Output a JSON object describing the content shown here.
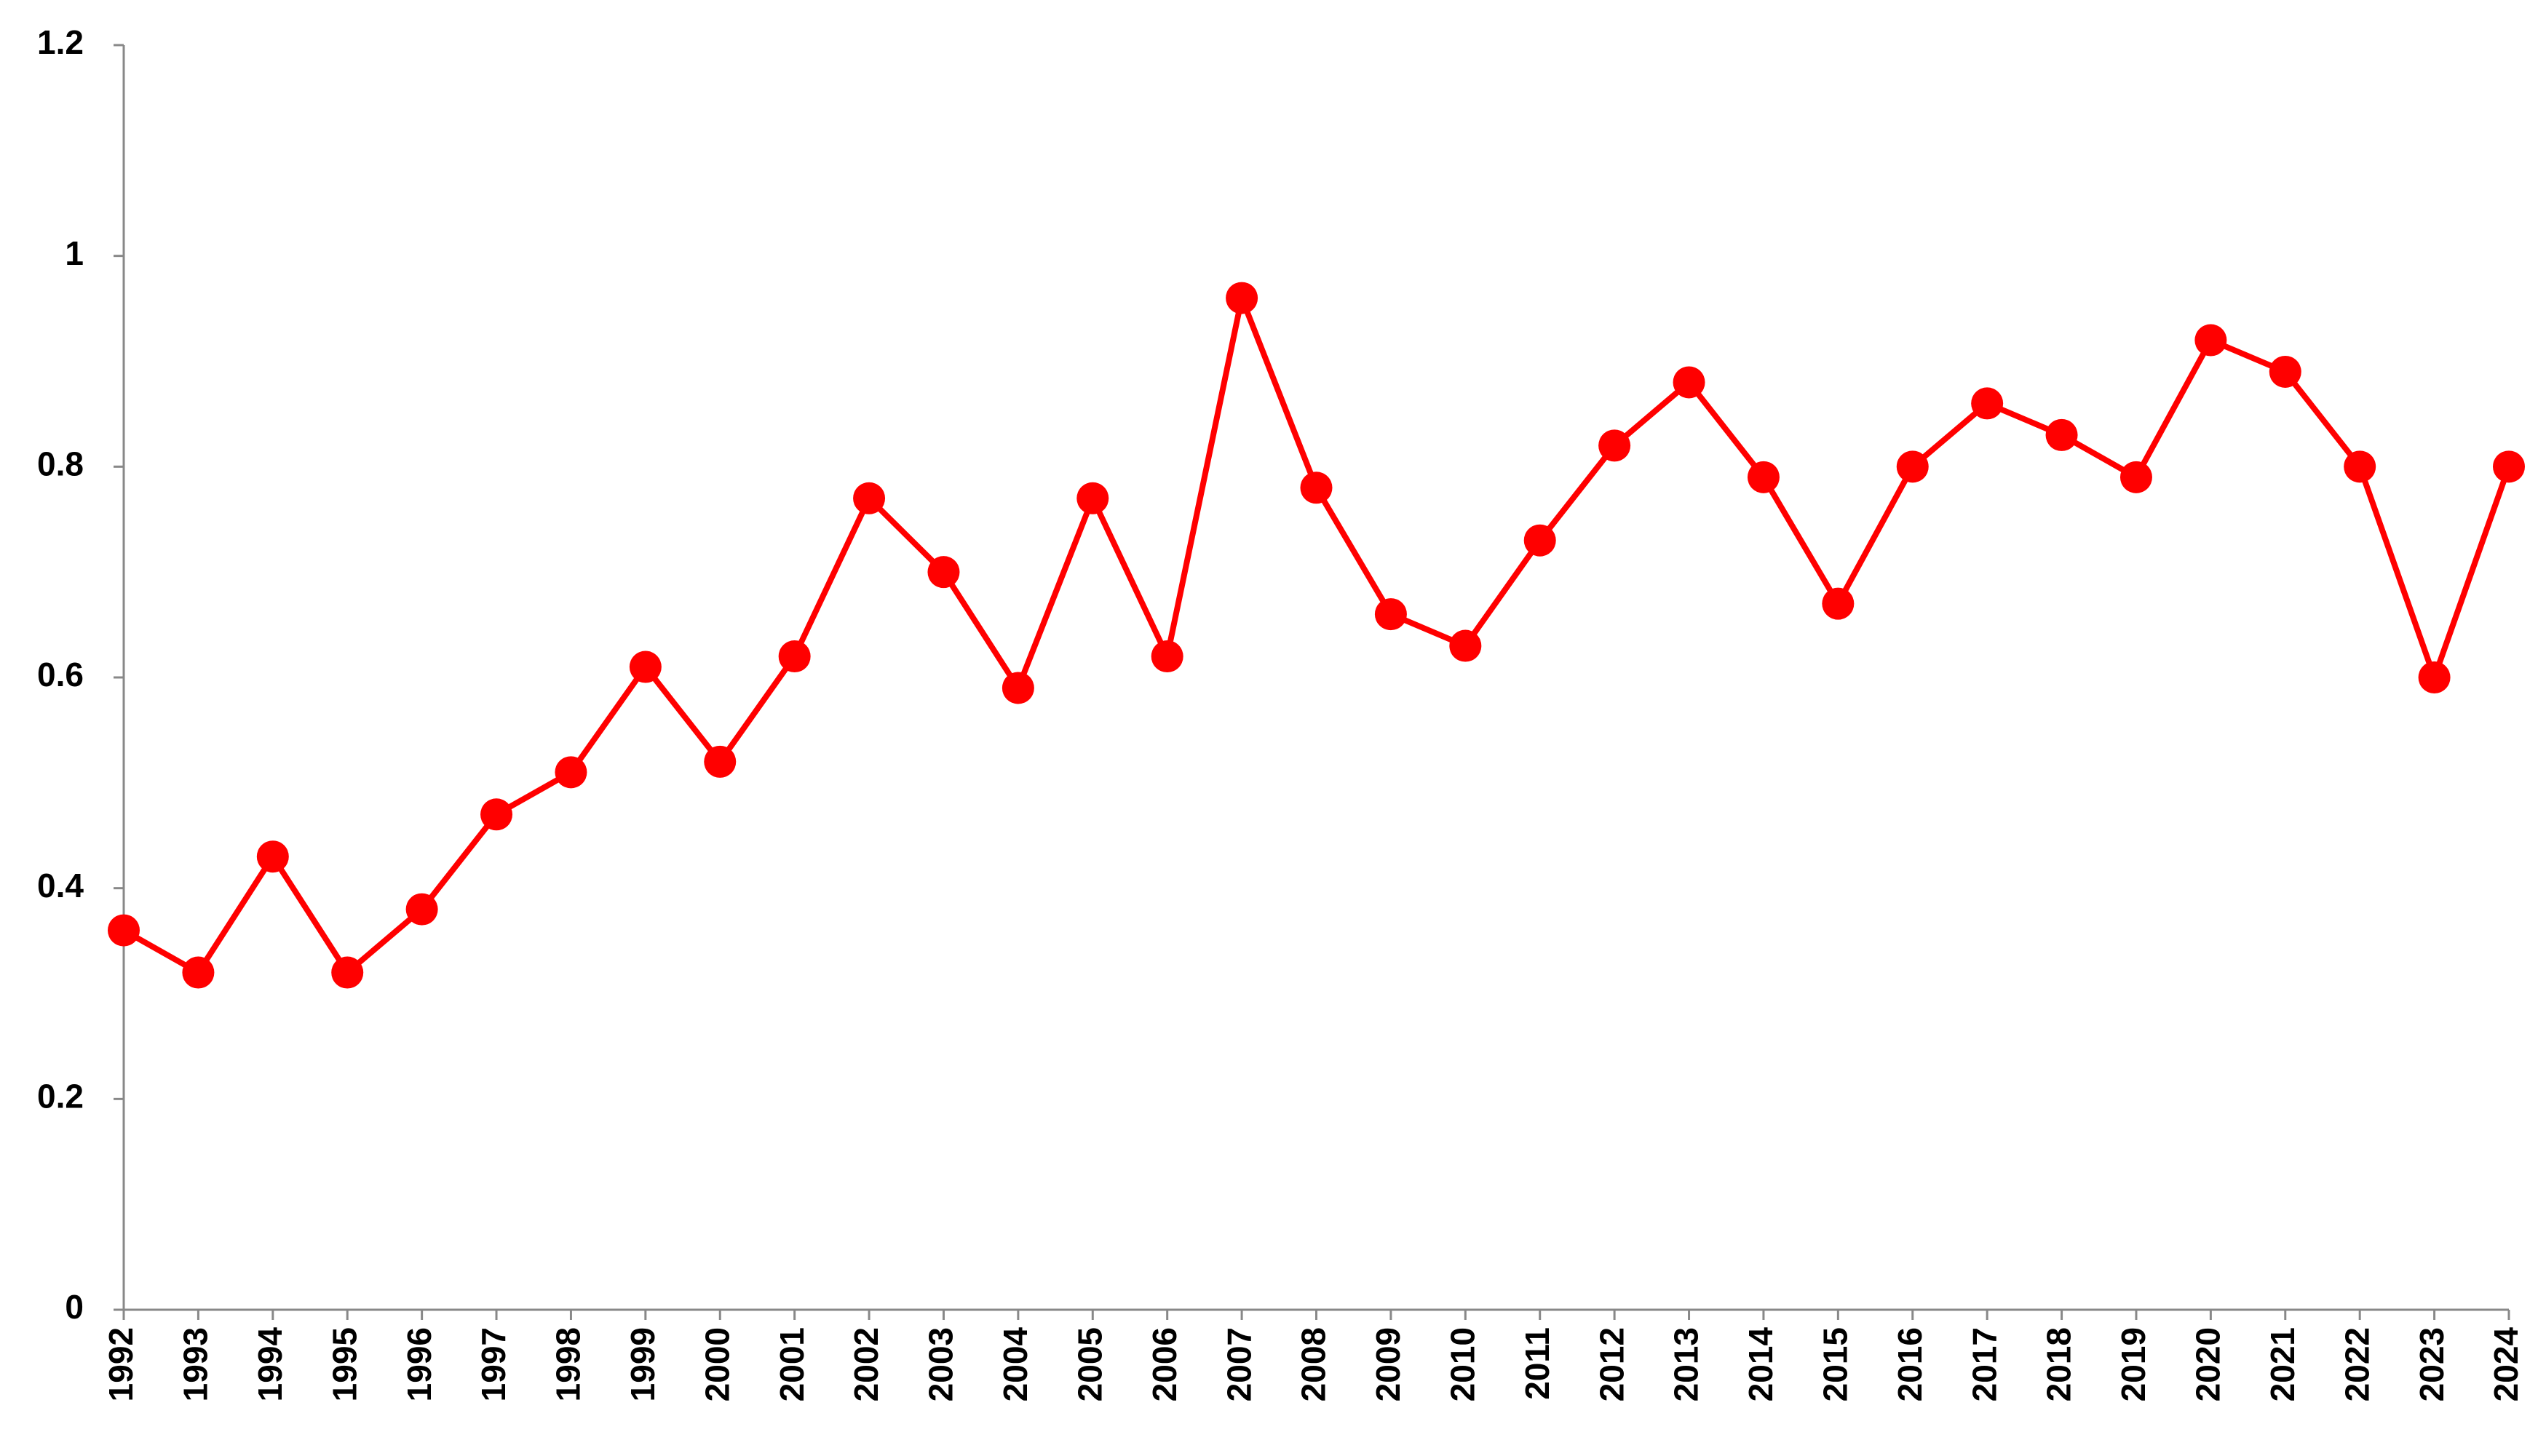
{
  "chart_data": {
    "type": "line",
    "categories": [
      "1992",
      "1993",
      "1994",
      "1995",
      "1996",
      "1997",
      "1998",
      "1999",
      "2000",
      "2001",
      "2002",
      "2003",
      "2004",
      "2005",
      "2006",
      "2007",
      "2008",
      "2009",
      "2010",
      "2011",
      "2012",
      "2013",
      "2014",
      "2015",
      "2016",
      "2017",
      "2018",
      "2019",
      "2020",
      "2021",
      "2022",
      "2023",
      "2024"
    ],
    "values": [
      0.36,
      0.32,
      0.43,
      0.32,
      0.38,
      0.47,
      0.51,
      0.61,
      0.52,
      0.62,
      0.77,
      0.7,
      0.59,
      0.77,
      0.62,
      0.96,
      0.78,
      0.66,
      0.63,
      0.73,
      0.82,
      0.88,
      0.79,
      0.67,
      0.8,
      0.86,
      0.83,
      0.79,
      0.92,
      0.89,
      0.8,
      0.6,
      0.8
    ],
    "color": "#ff0000",
    "ylim": [
      0,
      1.2
    ],
    "yticks": [
      0,
      0.2,
      0.4,
      0.6,
      0.8,
      1,
      1.2
    ],
    "grid": false
  }
}
